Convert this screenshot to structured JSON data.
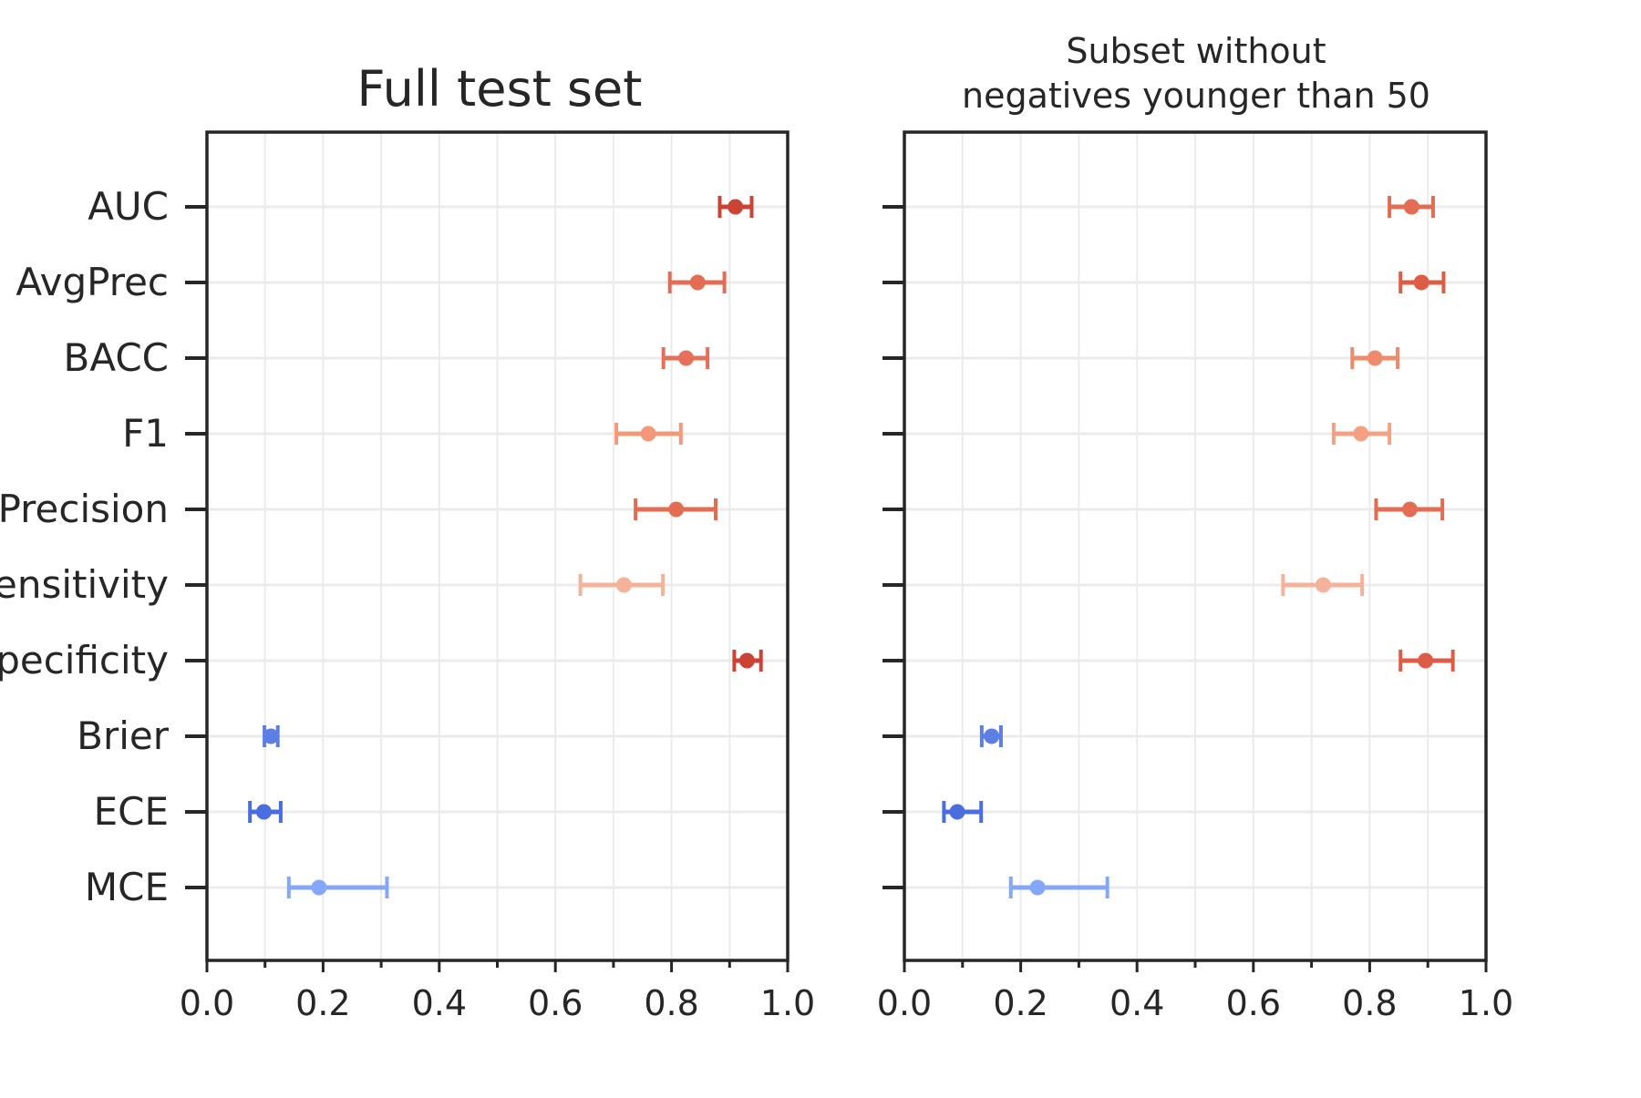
{
  "chart_data": [
    {
      "type": "errorbar",
      "title": "Full test set",
      "categories": [
        "AUC",
        "AvgPrec",
        "BACC",
        "F1",
        "Precision",
        "Sensitivity",
        "Specificity",
        "Brier",
        "ECE",
        "MCE"
      ],
      "values": [
        0.91,
        0.845,
        0.825,
        0.76,
        0.808,
        0.718,
        0.93,
        0.11,
        0.098,
        0.193
      ],
      "lower": [
        0.883,
        0.797,
        0.786,
        0.705,
        0.738,
        0.643,
        0.908,
        0.099,
        0.074,
        0.141
      ],
      "upper": [
        0.938,
        0.891,
        0.862,
        0.816,
        0.876,
        0.785,
        0.954,
        0.122,
        0.127,
        0.31
      ],
      "colors": [
        "#cb4335",
        "#e36d53",
        "#e66f59",
        "#f4987a",
        "#e36d53",
        "#f5b29b",
        "#cb4335",
        "#5d7fe3",
        "#4a6ee0",
        "#85a7f9"
      ],
      "xlim": [
        0,
        1
      ],
      "xticks": [
        "0.0",
        "0.2",
        "0.4",
        "0.6",
        "0.8",
        "1.0"
      ],
      "grid": true
    },
    {
      "type": "errorbar",
      "title_lines": [
        "Subset without",
        "negatives younger than 50"
      ],
      "categories": [
        "AUC",
        "AvgPrec",
        "BACC",
        "F1",
        "Precision",
        "Sensitivity",
        "Specificity",
        "Brier",
        "ECE",
        "MCE"
      ],
      "values": [
        0.872,
        0.889,
        0.809,
        0.785,
        0.869,
        0.72,
        0.896,
        0.15,
        0.091,
        0.229
      ],
      "lower": [
        0.834,
        0.853,
        0.77,
        0.738,
        0.811,
        0.651,
        0.853,
        0.133,
        0.068,
        0.183
      ],
      "upper": [
        0.909,
        0.927,
        0.848,
        0.834,
        0.925,
        0.787,
        0.943,
        0.166,
        0.132,
        0.349
      ],
      "colors": [
        "#e36d53",
        "#dd5c45",
        "#f08a6c",
        "#f4a183",
        "#e36d53",
        "#f5b29b",
        "#dd5c45",
        "#5d7fe3",
        "#4a6ee0",
        "#85a7f9"
      ],
      "xlim": [
        0,
        1
      ],
      "xticks": [
        "0.0",
        "0.2",
        "0.4",
        "0.6",
        "0.8",
        "1.0"
      ],
      "grid": true
    }
  ]
}
